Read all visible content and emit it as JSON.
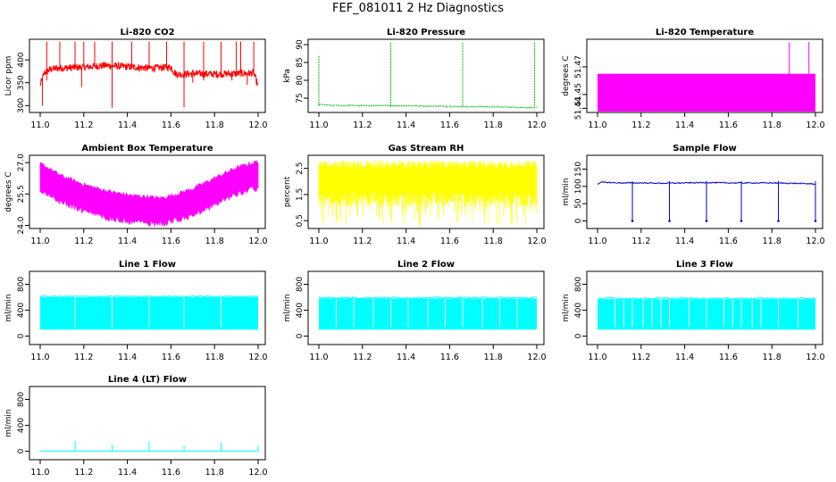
{
  "page": {
    "title": "FEF_081011  2 Hz Diagnostics"
  },
  "chart_data": [
    {
      "type": "line",
      "title": "Li-820 CO2",
      "ylabel": "Licor ppm",
      "x_ticks": [
        "11.0",
        "11.2",
        "11.4",
        "11.6",
        "11.8",
        "12.0"
      ],
      "y_ticks": [
        "300",
        "350",
        "400"
      ],
      "ylim": [
        285,
        445
      ],
      "xlim": [
        10.97,
        12.03
      ],
      "color": "#ff0000",
      "grid": false,
      "series": [
        {
          "x": [
            11.0,
            11.02,
            11.05,
            11.1,
            11.2,
            11.3,
            11.4,
            11.5,
            11.6,
            11.62,
            11.64,
            11.7,
            11.8,
            11.9,
            11.98,
            12.0
          ],
          "y": [
            345,
            372,
            380,
            382,
            384,
            388,
            385,
            382,
            384,
            370,
            368,
            370,
            369,
            370,
            371,
            342
          ]
        }
      ]
    },
    {
      "type": "line",
      "title": "Li-820 Pressure",
      "ylabel": "kPa",
      "x_ticks": [
        "11.0",
        "11.2",
        "11.4",
        "11.6",
        "11.8",
        "12.0"
      ],
      "y_ticks": [
        "75",
        "80",
        "85",
        "90"
      ],
      "ylim": [
        71,
        91.5
      ],
      "xlim": [
        10.97,
        12.03
      ],
      "color": "#00bb00",
      "grid": false,
      "series": [
        {
          "x": [
            11.0,
            11.05,
            11.2,
            11.33,
            11.5,
            11.66,
            11.8,
            11.99,
            12.0
          ],
          "y": [
            73.3,
            73.0,
            72.9,
            72.9,
            72.8,
            72.6,
            72.6,
            72.3,
            72.3
          ]
        }
      ]
    },
    {
      "type": "area",
      "title": "Li-820 Temperature",
      "ylabel": "degrees C",
      "x_ticks": [
        "11.0",
        "11.2",
        "11.4",
        "11.6",
        "11.8",
        "12.0"
      ],
      "y_ticks": [
        "51.44",
        "51.45",
        "51.47"
      ],
      "ylim": [
        51.437,
        51.49
      ],
      "xlim": [
        10.97,
        12.03
      ],
      "color": "#ff00ff",
      "grid": false,
      "series": [
        {
          "x": [
            11.0,
            12.0
          ],
          "y": [
            51.465,
            51.465
          ]
        }
      ]
    },
    {
      "type": "area",
      "title": "Ambient Box Temperature",
      "ylabel": "degrees C",
      "x_ticks": [
        "11.0",
        "11.2",
        "11.4",
        "11.6",
        "11.8",
        "12.0"
      ],
      "y_ticks": [
        "24.0",
        "25.5",
        "27.0"
      ],
      "ylim": [
        23.85,
        27.35
      ],
      "xlim": [
        10.97,
        12.03
      ],
      "color": "#ff00ff",
      "grid": false,
      "series": [
        {
          "x": [
            11.0,
            11.1,
            11.2,
            11.3,
            11.4,
            11.5,
            11.55,
            11.6,
            11.7,
            11.8,
            11.9,
            12.0
          ],
          "y": [
            26.3,
            25.7,
            25.3,
            25.0,
            24.8,
            24.7,
            24.65,
            24.75,
            25.1,
            25.6,
            26.1,
            26.4
          ]
        }
      ]
    },
    {
      "type": "area",
      "title": "Gas Stream RH",
      "ylabel": "percent",
      "x_ticks": [
        "11.0",
        "11.2",
        "11.4",
        "11.6",
        "11.8",
        "12.0"
      ],
      "y_ticks": [
        "0.5",
        "1.5",
        "2.5"
      ],
      "ylim": [
        0.2,
        3.0
      ],
      "xlim": [
        10.97,
        12.03
      ],
      "color": "#ffff00",
      "grid": false,
      "series": [
        {
          "x": [
            11.0,
            12.0
          ],
          "y": [
            1.6,
            1.6
          ]
        }
      ]
    },
    {
      "type": "line",
      "title": "Sample Flow",
      "ylabel": "ml/min",
      "x_ticks": [
        "11.0",
        "11.2",
        "11.4",
        "11.6",
        "11.8",
        "12.0"
      ],
      "y_ticks": [
        "0",
        "50",
        "100",
        "150"
      ],
      "ylim": [
        -22,
        190
      ],
      "xlim": [
        10.97,
        12.03
      ],
      "color": "#0000cc",
      "grid": false,
      "series": [
        {
          "x": [
            11.0,
            11.02,
            11.1,
            11.2,
            11.3,
            11.4,
            11.5,
            11.6,
            11.7,
            11.8,
            11.9,
            12.0
          ],
          "y": [
            107,
            112,
            110,
            110,
            109,
            110,
            111,
            110,
            110,
            110,
            109,
            107
          ]
        }
      ]
    },
    {
      "type": "area",
      "title": "Line 1 Flow",
      "ylabel": "ml/min",
      "x_ticks": [
        "11.0",
        "11.2",
        "11.4",
        "11.6",
        "11.8",
        "12.0"
      ],
      "y_ticks": [
        "0",
        "400",
        "800"
      ],
      "ylim": [
        -130,
        1000
      ],
      "xlim": [
        10.97,
        12.03
      ],
      "color": "#00ffff",
      "grid": false,
      "series": [
        {
          "x": [
            11.0,
            12.0
          ],
          "y": [
            590,
            590
          ]
        }
      ]
    },
    {
      "type": "area",
      "title": "Line 2 Flow",
      "ylabel": "ml/min",
      "x_ticks": [
        "11.0",
        "11.2",
        "11.4",
        "11.6",
        "11.8",
        "12.0"
      ],
      "y_ticks": [
        "0",
        "400",
        "800"
      ],
      "ylim": [
        -130,
        1000
      ],
      "xlim": [
        10.97,
        12.03
      ],
      "color": "#00ffff",
      "grid": false,
      "series": [
        {
          "x": [
            11.0,
            12.0
          ],
          "y": [
            570,
            570
          ]
        }
      ]
    },
    {
      "type": "area",
      "title": "Line 3 Flow",
      "ylabel": "ml/min",
      "x_ticks": [
        "11.0",
        "11.2",
        "11.4",
        "11.6",
        "11.8",
        "12.0"
      ],
      "y_ticks": [
        "0",
        "400",
        "800"
      ],
      "ylim": [
        -130,
        1000
      ],
      "xlim": [
        10.97,
        12.03
      ],
      "color": "#00ffff",
      "grid": false,
      "series": [
        {
          "x": [
            11.0,
            12.0
          ],
          "y": [
            560,
            560
          ]
        }
      ]
    },
    {
      "type": "line",
      "title": "Line 4 (LT) Flow",
      "ylabel": "ml/min",
      "x_ticks": [
        "11.0",
        "11.2",
        "11.4",
        "11.6",
        "11.8",
        "12.0"
      ],
      "y_ticks": [
        "0",
        "400",
        "800"
      ],
      "ylim": [
        -130,
        1000
      ],
      "xlim": [
        10.97,
        12.03
      ],
      "color": "#00ffff",
      "grid": false,
      "series": [
        {
          "x": [
            11.0,
            11.16,
            11.33,
            11.5,
            11.66,
            11.83,
            12.0
          ],
          "y": [
            2,
            2,
            2,
            2,
            2,
            2,
            2
          ]
        }
      ]
    }
  ]
}
